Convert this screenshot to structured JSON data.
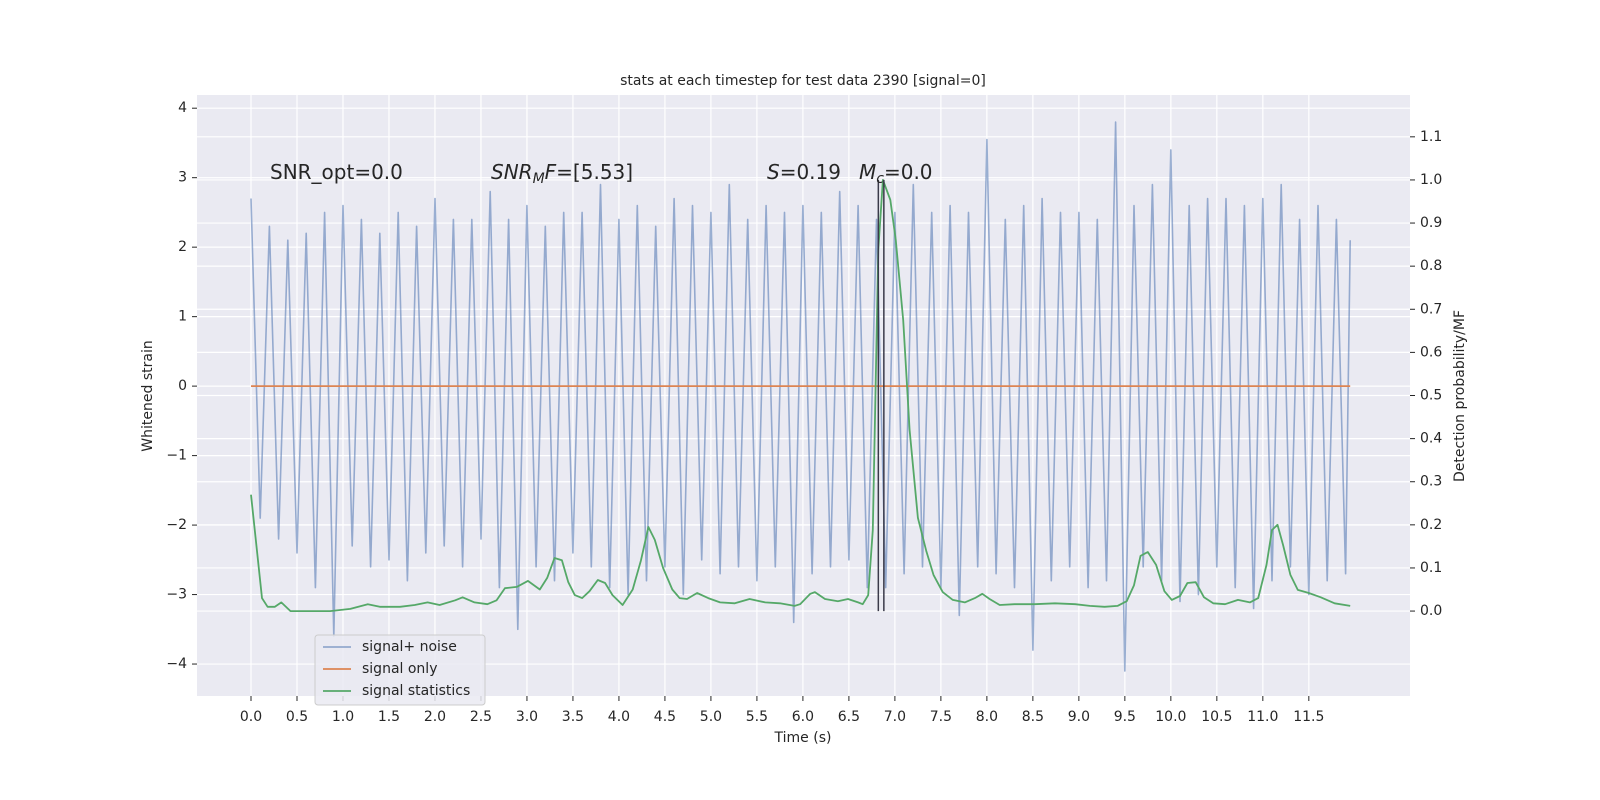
{
  "chart_data": {
    "type": "line",
    "title": "stats at each timestep for test data 2390 [signal=0]",
    "x_label": "Time (s)",
    "y_label": "Whitened strain",
    "y2_label": "Detection probability/MF",
    "xlim": [
      -0.587,
      12.6
    ],
    "ylim": [
      -4.46,
      4.19
    ],
    "y2lim": [
      -0.197,
      1.197
    ],
    "xticks": [
      {
        "value": 0,
        "label": "0.0"
      },
      0.5,
      {
        "value": 1,
        "label": "1.0"
      },
      1.5,
      {
        "value": 2,
        "label": "2.0"
      },
      2.5,
      {
        "value": 3,
        "label": "3.0"
      },
      3.5,
      {
        "value": 4,
        "label": "4.0"
      },
      4.5,
      {
        "value": 5,
        "label": "5.0"
      },
      5.5,
      {
        "value": 6,
        "label": "6.0"
      },
      6.5,
      {
        "value": 7,
        "label": "7.0"
      },
      7.5,
      {
        "value": 8,
        "label": "8.0"
      },
      8.5,
      {
        "value": 9,
        "label": "9.0"
      },
      9.5,
      {
        "value": 10,
        "label": "10.0"
      },
      10.5,
      {
        "value": 11,
        "label": "11.0"
      },
      11.5
    ],
    "yticks": [
      {
        "value": -4,
        "label": "−4"
      },
      {
        "value": -3,
        "label": "−3"
      },
      {
        "value": -2,
        "label": "−2"
      },
      {
        "value": -1,
        "label": "−1"
      },
      0,
      1,
      2,
      3,
      4
    ],
    "y2ticks": [
      {
        "value": 0,
        "label": "0.0"
      },
      0.1,
      0.2,
      0.3,
      0.4,
      0.5,
      0.6,
      0.7,
      0.8,
      0.9,
      {
        "value": 1,
        "label": "1.0"
      },
      1.1
    ],
    "grid": true,
    "background": "#eaeaf2",
    "legend": "lower left",
    "series": [
      {
        "name": "signal+ noise",
        "color": "#4c72b0",
        "alpha": 0.55,
        "x": [
          0,
          0.1,
          0.2,
          0.3,
          0.4,
          0.5,
          0.6,
          0.7,
          0.8,
          0.9,
          1,
          1.1,
          1.2,
          1.3,
          1.4,
          1.5,
          1.6,
          1.7,
          1.8,
          1.9,
          2,
          2.1,
          2.2,
          2.3,
          2.4,
          2.5,
          2.6,
          2.7,
          2.8,
          2.9,
          3,
          3.1,
          3.2,
          3.3,
          3.4,
          3.5,
          3.6,
          3.7,
          3.8,
          3.9,
          4,
          4.1,
          4.2,
          4.3,
          4.4,
          4.5,
          4.6,
          4.7,
          4.8,
          4.9,
          5,
          5.1,
          5.2,
          5.3,
          5.4,
          5.5,
          5.6,
          5.7,
          5.8,
          5.9,
          6,
          6.1,
          6.2,
          6.3,
          6.4,
          6.5,
          6.6,
          6.7,
          6.8,
          6.9,
          7,
          7.1,
          7.2,
          7.3,
          7.4,
          7.5,
          7.6,
          7.7,
          7.8,
          7.9,
          8,
          8.1,
          8.2,
          8.3,
          8.4,
          8.5,
          8.6,
          8.7,
          8.8,
          8.9,
          9,
          9.1,
          9.2,
          9.3,
          9.4,
          9.5,
          9.6,
          9.7,
          9.8,
          9.9,
          10,
          10.1,
          10.2,
          10.3,
          10.4,
          10.5,
          10.6,
          10.7,
          10.8,
          10.9,
          11,
          11.1,
          11.2,
          11.3,
          11.4,
          11.5,
          11.6,
          11.7,
          11.8,
          11.9,
          11.95
        ],
        "values": [
          2.7,
          -1.9,
          2.3,
          -2.2,
          2.1,
          -2.4,
          2.2,
          -2.9,
          2.5,
          -3.6,
          2.6,
          -2.3,
          2.4,
          -2.6,
          2.2,
          -2.5,
          2.5,
          -2.8,
          2.3,
          -2.4,
          2.7,
          -2.3,
          2.4,
          -2.6,
          2.4,
          -2.2,
          2.8,
          -2.9,
          2.4,
          -3.5,
          2.6,
          -2.6,
          2.3,
          -2.8,
          2.5,
          -2.4,
          2.5,
          -2.6,
          2.9,
          -2.9,
          2.4,
          -3.0,
          2.6,
          -2.8,
          2.3,
          -2.6,
          2.7,
          -3.0,
          2.6,
          -2.5,
          2.5,
          -2.7,
          2.9,
          -2.6,
          2.4,
          -2.8,
          2.6,
          -2.6,
          2.5,
          -3.4,
          2.6,
          -2.7,
          2.5,
          -2.6,
          2.8,
          -2.5,
          2.6,
          -2.9,
          2.4,
          -2.9,
          2.5,
          -2.7,
          2.9,
          -2.6,
          2.5,
          -2.9,
          2.6,
          -3.3,
          2.5,
          -2.6,
          3.55,
          -2.7,
          2.4,
          -2.9,
          2.6,
          -3.8,
          2.7,
          -2.8,
          2.5,
          -2.6,
          2.5,
          -2.9,
          2.4,
          -2.8,
          3.8,
          -4.1,
          2.6,
          -2.6,
          2.9,
          -2.8,
          3.4,
          -3.1,
          2.6,
          -3.0,
          2.7,
          -2.6,
          2.7,
          -2.9,
          2.6,
          -3.2,
          2.7,
          -2.8,
          2.9,
          -2.6,
          2.4,
          -3.0,
          2.6,
          -2.8,
          2.4,
          -2.7,
          2.1
        ]
      },
      {
        "name": "signal only",
        "color": "#dd8452",
        "alpha": 1,
        "x": [
          0,
          11.95
        ],
        "values": [
          0,
          0
        ]
      },
      {
        "name": "signal statistics",
        "color": "#55a868",
        "alpha": 1,
        "axis": "y2",
        "x": [
          0,
          0.12,
          0.18,
          0.26,
          0.33,
          0.43,
          0.64,
          0.86,
          1.08,
          1.27,
          1.4,
          1.62,
          1.78,
          1.92,
          2.05,
          2.22,
          2.3,
          2.43,
          2.57,
          2.67,
          2.76,
          2.89,
          3.01,
          3.14,
          3.22,
          3.3,
          3.38,
          3.45,
          3.52,
          3.6,
          3.68,
          3.77,
          3.85,
          3.93,
          4.04,
          4.15,
          4.24,
          4.32,
          4.39,
          4.48,
          4.58,
          4.66,
          4.74,
          4.85,
          4.97,
          5.1,
          5.26,
          5.42,
          5.59,
          5.75,
          5.91,
          5.97,
          6.08,
          6.13,
          6.24,
          6.38,
          6.49,
          6.6,
          6.65,
          6.71,
          6.76,
          6.82,
          6.87,
          6.95,
          7.01,
          7.09,
          7.16,
          7.25,
          7.34,
          7.42,
          7.52,
          7.63,
          7.76,
          7.87,
          7.95,
          8.03,
          8.14,
          8.3,
          8.52,
          8.74,
          8.96,
          9.12,
          9.28,
          9.42,
          9.52,
          9.6,
          9.67,
          9.75,
          9.84,
          9.93,
          10.01,
          10.1,
          10.18,
          10.27,
          10.36,
          10.46,
          10.59,
          10.73,
          10.86,
          10.95,
          11.04,
          11.1,
          11.16,
          11.22,
          11.3,
          11.38,
          11.5,
          11.63,
          11.78,
          11.95
        ],
        "values": [
          0.27,
          0.03,
          0.01,
          0.01,
          0.02,
          0.0,
          0.0,
          0.0,
          0.005,
          0.016,
          0.01,
          0.01,
          0.014,
          0.02,
          0.014,
          0.025,
          0.032,
          0.02,
          0.016,
          0.025,
          0.053,
          0.056,
          0.07,
          0.05,
          0.077,
          0.123,
          0.118,
          0.067,
          0.037,
          0.03,
          0.046,
          0.072,
          0.065,
          0.037,
          0.014,
          0.05,
          0.118,
          0.195,
          0.165,
          0.1,
          0.05,
          0.03,
          0.028,
          0.042,
          0.03,
          0.02,
          0.018,
          0.028,
          0.02,
          0.018,
          0.012,
          0.016,
          0.04,
          0.044,
          0.028,
          0.023,
          0.028,
          0.02,
          0.016,
          0.037,
          0.188,
          0.838,
          1.0,
          0.954,
          0.86,
          0.675,
          0.42,
          0.216,
          0.14,
          0.084,
          0.044,
          0.026,
          0.02,
          0.03,
          0.04,
          0.028,
          0.014,
          0.016,
          0.016,
          0.018,
          0.016,
          0.012,
          0.01,
          0.012,
          0.023,
          0.06,
          0.128,
          0.137,
          0.107,
          0.046,
          0.026,
          0.035,
          0.065,
          0.067,
          0.032,
          0.018,
          0.016,
          0.026,
          0.02,
          0.03,
          0.107,
          0.188,
          0.2,
          0.153,
          0.084,
          0.049,
          0.042,
          0.032,
          0.018,
          0.012
        ]
      }
    ],
    "vlines": {
      "x": [
        6.82,
        6.88
      ],
      "y2range": [
        0,
        1
      ],
      "color": "#3a3a4a"
    },
    "annotations": [
      {
        "parts": [
          {
            "text": "SNR_opt=0.0"
          }
        ]
      },
      {
        "parts": [
          {
            "text": "SNR",
            "italic": true
          },
          {
            "text": "M",
            "italic": true,
            "sub": true
          },
          {
            "text": "F",
            "italic": true
          },
          {
            "text": "=[5.53]"
          }
        ]
      },
      {
        "parts": [
          {
            "text": "S",
            "italic": true
          },
          {
            "text": "=0.19"
          }
        ]
      },
      {
        "parts": [
          {
            "text": "M",
            "italic": true
          },
          {
            "text": "c",
            "italic": true,
            "sub": true
          },
          {
            "text": "=0.0"
          }
        ]
      }
    ]
  }
}
